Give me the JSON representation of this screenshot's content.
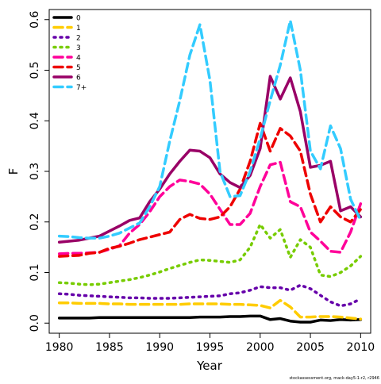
{
  "chart_data": {
    "type": "line",
    "title": "",
    "xlabel": "Year",
    "ylabel": "F",
    "xlim": [
      1979,
      2011
    ],
    "ylim": [
      -0.02,
      0.62
    ],
    "x_ticks": [
      1980,
      1985,
      1990,
      1995,
      2000,
      2005,
      2010
    ],
    "y_ticks": [
      0.0,
      0.1,
      0.2,
      0.3,
      0.4,
      0.5,
      0.6
    ],
    "y_tick_labels": [
      "0.0",
      "0.1",
      "0.2",
      "0.3",
      "0.4",
      "0.5",
      "0.6"
    ],
    "grid": false,
    "legend_position": "top-left",
    "footnote": "stockassessment.org, mack-day5-1-r2, r2946",
    "x": [
      1980,
      1981,
      1982,
      1983,
      1984,
      1985,
      1986,
      1987,
      1988,
      1989,
      1990,
      1991,
      1992,
      1993,
      1994,
      1995,
      1996,
      1997,
      1998,
      1999,
      2000,
      2001,
      2002,
      2003,
      2004,
      2005,
      2006,
      2007,
      2008,
      2009,
      2010
    ],
    "series": [
      {
        "name": "0",
        "color": "#000000",
        "dash": "solid",
        "values": [
          0.01,
          0.01,
          0.01,
          0.01,
          0.011,
          0.011,
          0.011,
          0.011,
          0.011,
          0.011,
          0.011,
          0.011,
          0.011,
          0.011,
          0.012,
          0.012,
          0.012,
          0.013,
          0.013,
          0.014,
          0.014,
          0.007,
          0.009,
          0.004,
          0.002,
          0.002,
          0.006,
          0.005,
          0.007,
          0.006,
          0.007
        ]
      },
      {
        "name": "1",
        "color": "#ffcc00",
        "dash": "dash",
        "values": [
          0.04,
          0.04,
          0.039,
          0.039,
          0.039,
          0.038,
          0.038,
          0.037,
          0.037,
          0.037,
          0.037,
          0.037,
          0.037,
          0.038,
          0.038,
          0.038,
          0.038,
          0.037,
          0.037,
          0.036,
          0.035,
          0.03,
          0.045,
          0.032,
          0.012,
          0.012,
          0.013,
          0.013,
          0.012,
          0.01,
          0.008
        ]
      },
      {
        "name": "2",
        "color": "#6600aa",
        "dash": "dot",
        "values": [
          0.058,
          0.057,
          0.055,
          0.054,
          0.053,
          0.052,
          0.051,
          0.05,
          0.05,
          0.049,
          0.049,
          0.049,
          0.05,
          0.051,
          0.052,
          0.053,
          0.054,
          0.058,
          0.06,
          0.065,
          0.072,
          0.07,
          0.07,
          0.065,
          0.075,
          0.068,
          0.055,
          0.042,
          0.034,
          0.038,
          0.048
        ]
      },
      {
        "name": "3",
        "color": "#77cc00",
        "dash": "dot",
        "values": [
          0.08,
          0.079,
          0.077,
          0.076,
          0.077,
          0.08,
          0.083,
          0.086,
          0.09,
          0.095,
          0.101,
          0.108,
          0.114,
          0.12,
          0.125,
          0.124,
          0.122,
          0.12,
          0.125,
          0.15,
          0.195,
          0.168,
          0.185,
          0.13,
          0.165,
          0.15,
          0.095,
          0.092,
          0.1,
          0.113,
          0.132
        ]
      },
      {
        "name": "4",
        "color": "#ff0099",
        "dash": "dash",
        "values": [
          0.137,
          0.138,
          0.138,
          0.139,
          0.14,
          0.146,
          0.153,
          0.178,
          0.195,
          0.22,
          0.25,
          0.27,
          0.283,
          0.28,
          0.275,
          0.255,
          0.225,
          0.195,
          0.195,
          0.217,
          0.27,
          0.313,
          0.318,
          0.24,
          0.23,
          0.18,
          0.162,
          0.142,
          0.14,
          0.18,
          0.236
        ]
      },
      {
        "name": "5",
        "color": "#ee0000",
        "dash": "dash",
        "values": [
          0.132,
          0.133,
          0.134,
          0.138,
          0.14,
          0.148,
          0.152,
          0.158,
          0.165,
          0.17,
          0.175,
          0.18,
          0.205,
          0.215,
          0.207,
          0.205,
          0.21,
          0.23,
          0.265,
          0.32,
          0.395,
          0.34,
          0.385,
          0.37,
          0.34,
          0.255,
          0.2,
          0.23,
          0.21,
          0.2,
          0.225
        ]
      },
      {
        "name": "6",
        "color": "#990066",
        "dash": "solid",
        "values": [
          0.16,
          0.162,
          0.164,
          0.168,
          0.172,
          0.182,
          0.192,
          0.203,
          0.208,
          0.24,
          0.265,
          0.295,
          0.32,
          0.342,
          0.34,
          0.327,
          0.295,
          0.278,
          0.268,
          0.292,
          0.345,
          0.488,
          0.443,
          0.485,
          0.418,
          0.308,
          0.312,
          0.32,
          0.222,
          0.23,
          0.21
        ]
      },
      {
        "name": "7+",
        "color": "#33ccff",
        "dash": "dash",
        "values": [
          0.172,
          0.171,
          0.169,
          0.168,
          0.168,
          0.172,
          0.178,
          0.188,
          0.198,
          0.23,
          0.27,
          0.36,
          0.44,
          0.53,
          0.59,
          0.48,
          0.3,
          0.25,
          0.252,
          0.3,
          0.365,
          0.44,
          0.51,
          0.598,
          0.5,
          0.34,
          0.305,
          0.39,
          0.345,
          0.245,
          0.203
        ]
      }
    ]
  }
}
